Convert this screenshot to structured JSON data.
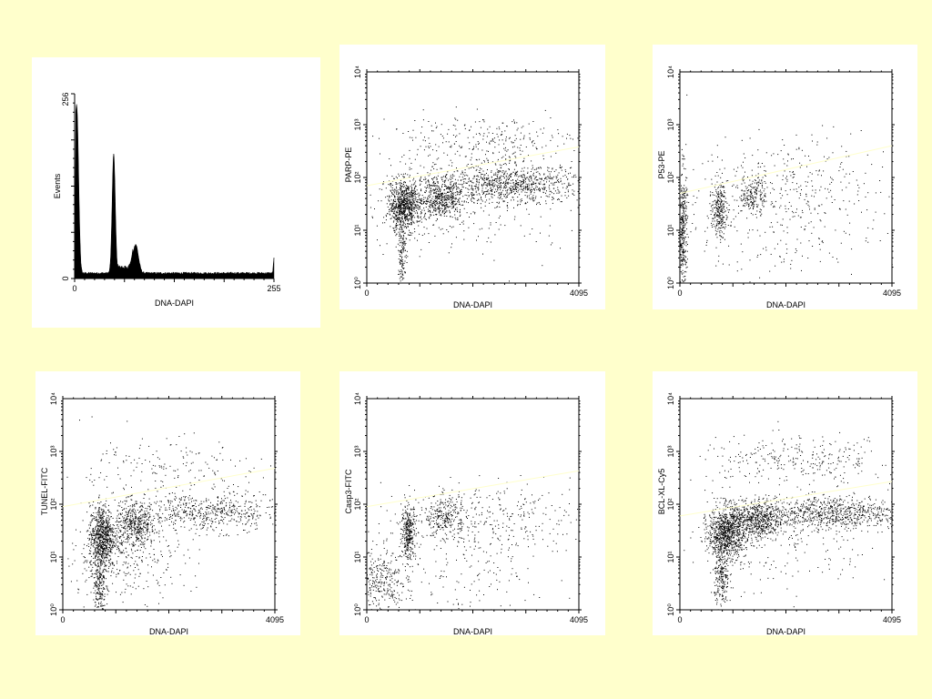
{
  "colors": {
    "background": "#FFFFCC",
    "panel": "#FFFFFF",
    "points": "#000000",
    "threshold_line": "#FFFFCC"
  },
  "chart_data": [
    {
      "type": "bar",
      "xlabel": "DNA-DAPI",
      "ylabel": "Events",
      "xlim": [
        0,
        255
      ],
      "ylim": [
        0,
        256
      ],
      "x_ticks": [
        "0",
        "255"
      ],
      "y_ticks": [
        "0",
        "256"
      ],
      "peaks": [
        {
          "x": 3,
          "y": 200
        },
        {
          "x": 50,
          "y": 165
        },
        {
          "x": 78,
          "y": 40
        },
        {
          "x": 255,
          "y": 20
        }
      ]
    },
    {
      "type": "scatter",
      "xlabel": "DNA-DAPI",
      "ylabel": "PARP-PE",
      "xlim": [
        0,
        4095
      ],
      "ylim": [
        1,
        10000
      ],
      "log_y": true,
      "x_ticks": [
        "0",
        "4095"
      ],
      "y_ticks": [
        "10⁰",
        "10¹",
        "10²",
        "10³",
        "10⁴"
      ],
      "threshold_line": {
        "x": [
          0,
          4095
        ],
        "y": [
          70,
          380
        ]
      },
      "clusters": [
        {
          "x": 700,
          "y": 30,
          "sx": 150,
          "sy": 0.25,
          "n": 800
        },
        {
          "x": 1400,
          "y": 40,
          "sx": 250,
          "sy": 0.22,
          "n": 600
        },
        {
          "x": 2800,
          "y": 75,
          "sx": 700,
          "sy": 0.18,
          "n": 900
        },
        {
          "x": 680,
          "y": 4,
          "sx": 40,
          "sy": 0.35,
          "n": 150
        },
        {
          "x": 2200,
          "y": 500,
          "sx": 1000,
          "sy": 0.25,
          "n": 300
        },
        {
          "x": 2000,
          "y": 20,
          "sx": 1200,
          "sy": 0.5,
          "n": 150
        }
      ]
    },
    {
      "type": "scatter",
      "xlabel": "DNA-DAPI",
      "ylabel": "P53-PE",
      "xlim": [
        0,
        4095
      ],
      "ylim": [
        1,
        10000
      ],
      "log_y": true,
      "x_ticks": [
        "0",
        "4095"
      ],
      "y_ticks": [
        "10⁰",
        "10¹",
        "10²",
        "10³",
        "10⁴"
      ],
      "threshold_line": {
        "x": [
          0,
          4095
        ],
        "y": [
          50,
          400
        ]
      },
      "clusters": [
        {
          "x": 50,
          "y": 10,
          "sx": 40,
          "sy": 0.6,
          "n": 350
        },
        {
          "x": 750,
          "y": 25,
          "sx": 70,
          "sy": 0.25,
          "n": 260
        },
        {
          "x": 1400,
          "y": 50,
          "sx": 130,
          "sy": 0.18,
          "n": 180
        },
        {
          "x": 2200,
          "y": 80,
          "sx": 900,
          "sy": 0.45,
          "n": 250
        },
        {
          "x": 1500,
          "y": 10,
          "sx": 1200,
          "sy": 0.6,
          "n": 250
        }
      ]
    },
    {
      "type": "scatter",
      "xlabel": "DNA-DAPI",
      "ylabel": "TUNEL-FITC",
      "xlim": [
        0,
        4095
      ],
      "ylim": [
        1,
        10000
      ],
      "log_y": true,
      "x_ticks": [
        "0",
        "4095"
      ],
      "y_ticks": [
        "10⁰",
        "10¹",
        "10²",
        "10³",
        "10⁴"
      ],
      "threshold_line": {
        "x": [
          0,
          4095
        ],
        "y": [
          90,
          480
        ]
      },
      "clusters": [
        {
          "x": 750,
          "y": 25,
          "sx": 120,
          "sy": 0.3,
          "n": 750
        },
        {
          "x": 700,
          "y": 3,
          "sx": 60,
          "sy": 0.3,
          "n": 200
        },
        {
          "x": 1400,
          "y": 40,
          "sx": 200,
          "sy": 0.22,
          "n": 450
        },
        {
          "x": 2800,
          "y": 70,
          "sx": 700,
          "sy": 0.18,
          "n": 550
        },
        {
          "x": 1200,
          "y": 10,
          "sx": 600,
          "sy": 0.4,
          "n": 300
        },
        {
          "x": 1800,
          "y": 400,
          "sx": 1000,
          "sy": 0.35,
          "n": 200
        }
      ]
    },
    {
      "type": "scatter",
      "xlabel": "DNA-DAPI",
      "ylabel": "Casp3-FITC",
      "xlim": [
        0,
        4095
      ],
      "ylim": [
        1,
        10000
      ],
      "log_y": true,
      "x_ticks": [
        "0",
        "4095"
      ],
      "y_ticks": [
        "10⁰",
        "10¹",
        "10²",
        "10³",
        "10⁴"
      ],
      "threshold_line": {
        "x": [
          0,
          4095
        ],
        "y": [
          90,
          430
        ]
      },
      "clusters": [
        {
          "x": 800,
          "y": 30,
          "sx": 70,
          "sy": 0.25,
          "n": 320
        },
        {
          "x": 1500,
          "y": 60,
          "sx": 200,
          "sy": 0.2,
          "n": 250
        },
        {
          "x": 300,
          "y": 3,
          "sx": 250,
          "sy": 0.35,
          "n": 320
        },
        {
          "x": 2600,
          "y": 60,
          "sx": 900,
          "sy": 0.3,
          "n": 250
        },
        {
          "x": 1600,
          "y": 10,
          "sx": 1200,
          "sy": 0.6,
          "n": 250
        }
      ]
    },
    {
      "type": "scatter",
      "xlabel": "DNA-DAPI",
      "ylabel": "BCL-XL-Cy5",
      "xlim": [
        0,
        4095
      ],
      "ylim": [
        1,
        10000
      ],
      "log_y": true,
      "x_ticks": [
        "0",
        "4095"
      ],
      "y_ticks": [
        "10⁰",
        "10¹",
        "10²",
        "10³",
        "10⁴"
      ],
      "threshold_line": {
        "x": [
          0,
          4095
        ],
        "y": [
          60,
          270
        ]
      },
      "clusters": [
        {
          "x": 900,
          "y": 30,
          "sx": 180,
          "sy": 0.25,
          "n": 900
        },
        {
          "x": 1500,
          "y": 50,
          "sx": 250,
          "sy": 0.2,
          "n": 600
        },
        {
          "x": 2900,
          "y": 70,
          "sx": 700,
          "sy": 0.16,
          "n": 800
        },
        {
          "x": 800,
          "y": 4,
          "sx": 70,
          "sy": 0.3,
          "n": 220
        },
        {
          "x": 2300,
          "y": 700,
          "sx": 1000,
          "sy": 0.22,
          "n": 300
        },
        {
          "x": 1800,
          "y": 15,
          "sx": 1200,
          "sy": 0.5,
          "n": 200
        }
      ]
    }
  ]
}
